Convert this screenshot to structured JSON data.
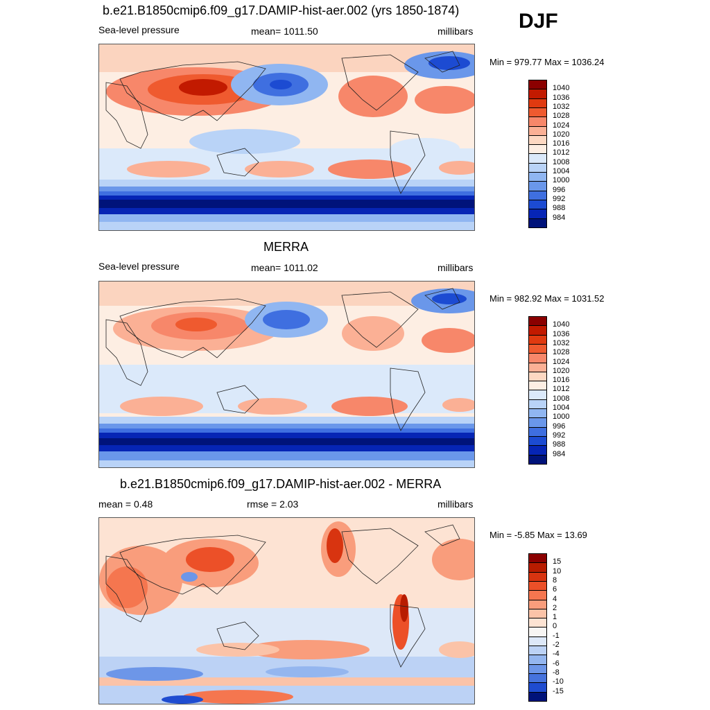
{
  "season": "DJF",
  "panels": [
    {
      "title": "b.e21.B1850cmip6.f09_g17.DAMIP-hist-aer.002 (yrs 1850-1874)",
      "left_label": "Sea-level pressure",
      "center_label": "mean= 1011.50",
      "right_label": "millibars",
      "minmax": "Min = 979.77 Max = 1036.24",
      "colorbar": {
        "labels": [
          "1040",
          "1036",
          "1032",
          "1028",
          "1024",
          "1020",
          "1016",
          "1012",
          "1008",
          "1004",
          "1000",
          "996",
          "992",
          "988",
          "984"
        ],
        "colors": [
          "#8b0000",
          "#c21a00",
          "#e03a10",
          "#ef5a2f",
          "#f7876a",
          "#fbb095",
          "#fdd8c2",
          "#fdeee3",
          "#dbe9fa",
          "#b9d3f7",
          "#90b6f1",
          "#6a97ea",
          "#3f6fe0",
          "#1c4bd2",
          "#0625b5",
          "#00137a"
        ]
      }
    },
    {
      "title": "MERRA",
      "left_label": "Sea-level pressure",
      "center_label": "mean= 1011.02",
      "right_label": "millibars",
      "minmax": "Min = 982.92 Max = 1031.52",
      "colorbar": {
        "labels": [
          "1040",
          "1036",
          "1032",
          "1028",
          "1024",
          "1020",
          "1016",
          "1012",
          "1008",
          "1004",
          "1000",
          "996",
          "992",
          "988",
          "984"
        ],
        "colors": [
          "#8b0000",
          "#c21a00",
          "#e03a10",
          "#ef5a2f",
          "#f7876a",
          "#fbb095",
          "#fdd8c2",
          "#fdeee3",
          "#dbe9fa",
          "#b9d3f7",
          "#90b6f1",
          "#6a97ea",
          "#3f6fe0",
          "#1c4bd2",
          "#0625b5",
          "#00137a"
        ]
      }
    },
    {
      "title": "b.e21.B1850cmip6.f09_g17.DAMIP-hist-aer.002 - MERRA",
      "left_label": "mean =   0.48",
      "center_label": "rmse =   2.03",
      "right_label": "millibars",
      "minmax": "Min =  -5.85 Max =  13.69",
      "colorbar": {
        "labels": [
          "15",
          "10",
          "8",
          "6",
          "4",
          "2",
          "1",
          "0",
          "-1",
          "-2",
          "-4",
          "-6",
          "-8",
          "-10",
          "-15"
        ],
        "colors": [
          "#8b0000",
          "#b81c00",
          "#d83410",
          "#ec5028",
          "#f5764f",
          "#f99d7c",
          "#fbc3a8",
          "#fde3d3",
          "#f7f5f3",
          "#dde8f8",
          "#bcd2f5",
          "#94b6ef",
          "#6d96e8",
          "#4673dd",
          "#1f4cd0",
          "#00137a"
        ]
      }
    }
  ]
}
